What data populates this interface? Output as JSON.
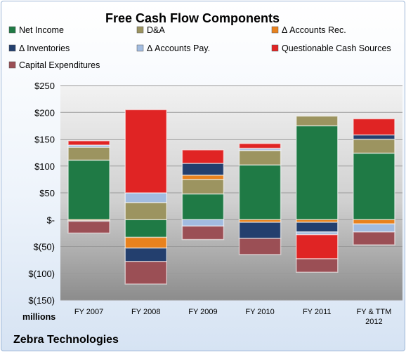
{
  "chart_data": {
    "type": "bar",
    "stacked": true,
    "title": "Free Cash Flow Components",
    "unit_label": "millions",
    "company": "Zebra Technologies",
    "categories": [
      "FY 2007",
      "FY 2008",
      "FY 2009",
      "FY 2010",
      "FY 2011",
      "FY & TTM 2012"
    ],
    "category_lines": [
      [
        "FY 2007"
      ],
      [
        "FY 2008"
      ],
      [
        "FY 2009"
      ],
      [
        "FY 2010"
      ],
      [
        "FY 2011"
      ],
      [
        "FY & TTM",
        "2012"
      ]
    ],
    "ylim": [
      -150,
      250
    ],
    "yticks": [
      {
        "value": 250,
        "label": "$250"
      },
      {
        "value": 200,
        "label": "$200"
      },
      {
        "value": 150,
        "label": "$150"
      },
      {
        "value": 100,
        "label": "$100"
      },
      {
        "value": 50,
        "label": "$50"
      },
      {
        "value": 0,
        "label": "$-"
      },
      {
        "value": -50,
        "label": "$(50)"
      },
      {
        "value": -100,
        "label": "$(100)"
      },
      {
        "value": -150,
        "label": "$(150)"
      }
    ],
    "grid": true,
    "legend_position": "top",
    "series": [
      {
        "name": "Net Income",
        "color": "#1f7a45",
        "values": [
          111,
          -33,
          48,
          102,
          175,
          124
        ]
      },
      {
        "name": "D&A",
        "color": "#9c9460",
        "values": [
          24,
          32,
          27,
          27,
          18,
          26
        ]
      },
      {
        "name": "Δ Accounts Rec.",
        "color": "#e8821e",
        "values": [
          -2,
          -20,
          8,
          -5,
          -5,
          -8
        ]
      },
      {
        "name": "Δ Inventories",
        "color": "#233f6e",
        "values": [
          -1,
          -25,
          22,
          -30,
          -18,
          8
        ]
      },
      {
        "name": "Δ Accounts Pay.",
        "color": "#a2bce0",
        "values": [
          4,
          18,
          -12,
          4,
          -5,
          -15
        ]
      },
      {
        "name": "Questionable Cash Sources",
        "color": "#e02424",
        "values": [
          8,
          155,
          25,
          9,
          -45,
          30
        ]
      },
      {
        "name": "Capital Expenditures",
        "color": "#9b4f55",
        "values": [
          -22,
          -42,
          -25,
          -30,
          -25,
          -24
        ]
      }
    ]
  }
}
